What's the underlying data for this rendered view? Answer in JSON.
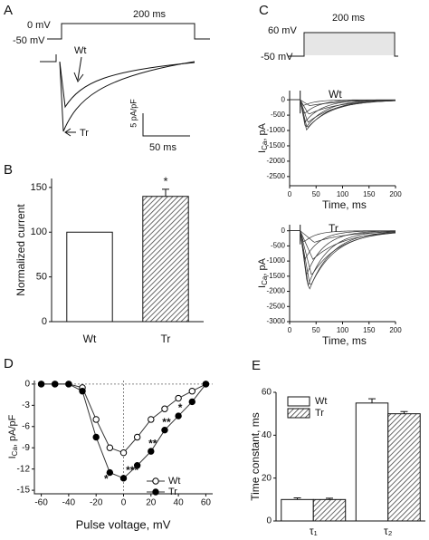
{
  "panels": {
    "a": "A",
    "b": "B",
    "c": "C",
    "d": "D",
    "e": "E"
  },
  "protocol_a": {
    "top": "0 mV",
    "bottom": "-50 mV",
    "duration": "200 ms",
    "trace_labels": [
      "Wt",
      "Tr"
    ],
    "scale_y": "5 pA/pF",
    "scale_x": "50 ms"
  },
  "protocol_c": {
    "top": "60 mV",
    "bottom": "-50 mV",
    "duration": "200 ms"
  },
  "chart_data": [
    {
      "type": "bar",
      "categories": [
        "Wt",
        "Tr"
      ],
      "values": [
        100,
        140
      ],
      "errors": [
        0,
        8
      ],
      "colors": [
        "#ffffff",
        "#666666"
      ],
      "hatch": [
        false,
        true
      ],
      "annotations": [
        "*"
      ],
      "ylabel": "Normalized current",
      "ylim": [
        0,
        160
      ],
      "yticks": [
        0,
        50,
        100,
        150
      ]
    },
    {
      "type": "line",
      "label": "Wt",
      "xlabel": "Time, ms",
      "ylabel": {
        "main": "I",
        "sub": "Ca",
        "rest": ", pA"
      },
      "xlim": [
        0,
        200
      ],
      "xticks": [
        0,
        50,
        100,
        150,
        200
      ],
      "ylim": [
        -2800,
        300
      ],
      "yticks": [
        0,
        -500,
        -1000,
        -1500,
        -2000,
        -2500
      ]
    },
    {
      "type": "line",
      "label": "Tr",
      "xlabel": "Time, ms",
      "ylabel": {
        "main": "I",
        "sub": "Ca",
        "rest": ", pA"
      },
      "xlim": [
        0,
        200
      ],
      "xticks": [
        0,
        50,
        100,
        150,
        200
      ],
      "ylim": [
        -3000,
        200
      ],
      "yticks": [
        0,
        -500,
        -1000,
        -1500,
        -2000,
        -2500,
        -3000
      ]
    },
    {
      "type": "line",
      "x": [
        -60,
        -50,
        -40,
        -30,
        -20,
        -10,
        0,
        10,
        20,
        30,
        40,
        50,
        60
      ],
      "series": [
        {
          "name": "Wt",
          "color": "#ffffff",
          "values": [
            0,
            0,
            0,
            -0.5,
            -5,
            -9,
            -9.7,
            -7.5,
            -5,
            -3.5,
            -2,
            -1,
            0
          ]
        },
        {
          "name": "Tr",
          "color": "#000000",
          "values": [
            0,
            0,
            0,
            -1,
            -7.5,
            -12.5,
            -13.3,
            -11.5,
            -9.5,
            -6.5,
            -4.5,
            -2.5,
            0
          ]
        }
      ],
      "annotations": [
        {
          "text": "*",
          "x": -10
        },
        {
          "text": "***",
          "x": 5
        },
        {
          "text": "**",
          "x": 20
        },
        {
          "text": "**",
          "x": 30
        },
        {
          "text": "*",
          "x": 40
        }
      ],
      "xlabel": "Pulse voltage, mV",
      "ylabel": {
        "main": "I",
        "sub": "Ca",
        "rest": ", pA/pF"
      },
      "xlim": [
        -65,
        65
      ],
      "xticks": [
        -60,
        -40,
        -20,
        0,
        20,
        40,
        60
      ],
      "ylim": [
        -15.5,
        0.5
      ],
      "yticks": [
        0,
        -3,
        -6,
        -9,
        -12,
        -15
      ],
      "zero_lines": true
    },
    {
      "type": "grouped_bar",
      "categories": [
        "τ₁",
        "τ₂"
      ],
      "series": [
        {
          "name": "Wt",
          "color": "#ffffff",
          "hatch": false,
          "values": [
            10,
            55
          ],
          "errors": [
            0.8,
            2
          ]
        },
        {
          "name": "Tr",
          "color": "#666666",
          "hatch": true,
          "values": [
            10,
            50
          ],
          "errors": [
            0.6,
            1
          ]
        }
      ],
      "ylabel": "Time constant, ms",
      "ylim": [
        0,
        60
      ],
      "yticks": [
        0,
        20,
        40,
        60
      ]
    }
  ]
}
